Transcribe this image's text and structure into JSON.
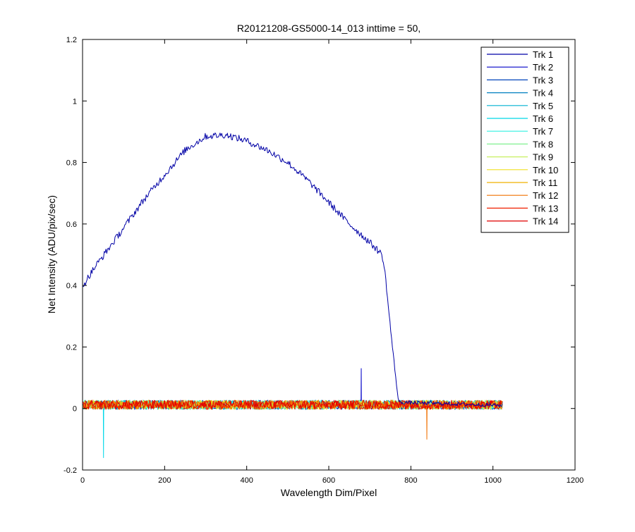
{
  "chart_data": {
    "type": "line",
    "title": "R20121208-GS5000-14_013 inttime = 50,",
    "xlabel": "Wavelength Dim/Pixel",
    "ylabel": "Net Intensity (ADU/pix/sec)",
    "xlim": [
      0,
      1200
    ],
    "ylim": [
      -0.2,
      1.2
    ],
    "xticks": [
      0,
      200,
      400,
      600,
      800,
      1000,
      1200
    ],
    "yticks": [
      -0.2,
      0,
      0.2,
      0.4,
      0.6,
      0.8,
      1,
      1.2
    ],
    "xtick_labels": [
      "0",
      "200",
      "400",
      "600",
      "800",
      "1000",
      "1200"
    ],
    "ytick_labels": [
      "-0.2",
      "0",
      "0.2",
      "0.4",
      "0.6",
      "0.8",
      "1",
      "1.2"
    ],
    "grid": false,
    "legend_position": "top-right",
    "series": [
      {
        "name": "Trk 1",
        "color": "#0000a6",
        "kind": "signal",
        "anchors": [
          [
            1,
            0.4
          ],
          [
            30,
            0.46
          ],
          [
            80,
            0.55
          ],
          [
            150,
            0.68
          ],
          [
            200,
            0.76
          ],
          [
            250,
            0.84
          ],
          [
            300,
            0.885
          ],
          [
            350,
            0.89
          ],
          [
            400,
            0.87
          ],
          [
            450,
            0.84
          ],
          [
            500,
            0.8
          ],
          [
            550,
            0.74
          ],
          [
            600,
            0.67
          ],
          [
            650,
            0.6
          ],
          [
            700,
            0.54
          ],
          [
            730,
            0.5
          ],
          [
            737,
            0.44
          ],
          [
            755,
            0.2
          ],
          [
            765,
            0.08
          ],
          [
            770,
            0.02
          ],
          [
            1024,
            0.01
          ]
        ]
      },
      {
        "name": "Trk 2",
        "color": "#0000c8",
        "kind": "noise",
        "spikes": [
          [
            680,
            0.13
          ]
        ]
      },
      {
        "name": "Trk 3",
        "color": "#0044bb",
        "kind": "noise"
      },
      {
        "name": "Trk 4",
        "color": "#0080c0",
        "kind": "noise"
      },
      {
        "name": "Trk 5",
        "color": "#00b0d0",
        "kind": "noise"
      },
      {
        "name": "Trk 6",
        "color": "#00d8e8",
        "kind": "noise",
        "spikes": [
          [
            52,
            -0.16
          ]
        ]
      },
      {
        "name": "Trk 7",
        "color": "#30f0e0",
        "kind": "noise"
      },
      {
        "name": "Trk 8",
        "color": "#80f090",
        "kind": "noise"
      },
      {
        "name": "Trk 9",
        "color": "#c8f060",
        "kind": "noise"
      },
      {
        "name": "Trk 10",
        "color": "#f0e020",
        "kind": "noise"
      },
      {
        "name": "Trk 11",
        "color": "#f0b000",
        "kind": "noise"
      },
      {
        "name": "Trk 12",
        "color": "#f07000",
        "kind": "noise",
        "spikes": [
          [
            840,
            -0.1
          ]
        ]
      },
      {
        "name": "Trk 13",
        "color": "#f02000",
        "kind": "noise"
      },
      {
        "name": "Trk 14",
        "color": "#e00000",
        "kind": "noise"
      }
    ]
  }
}
